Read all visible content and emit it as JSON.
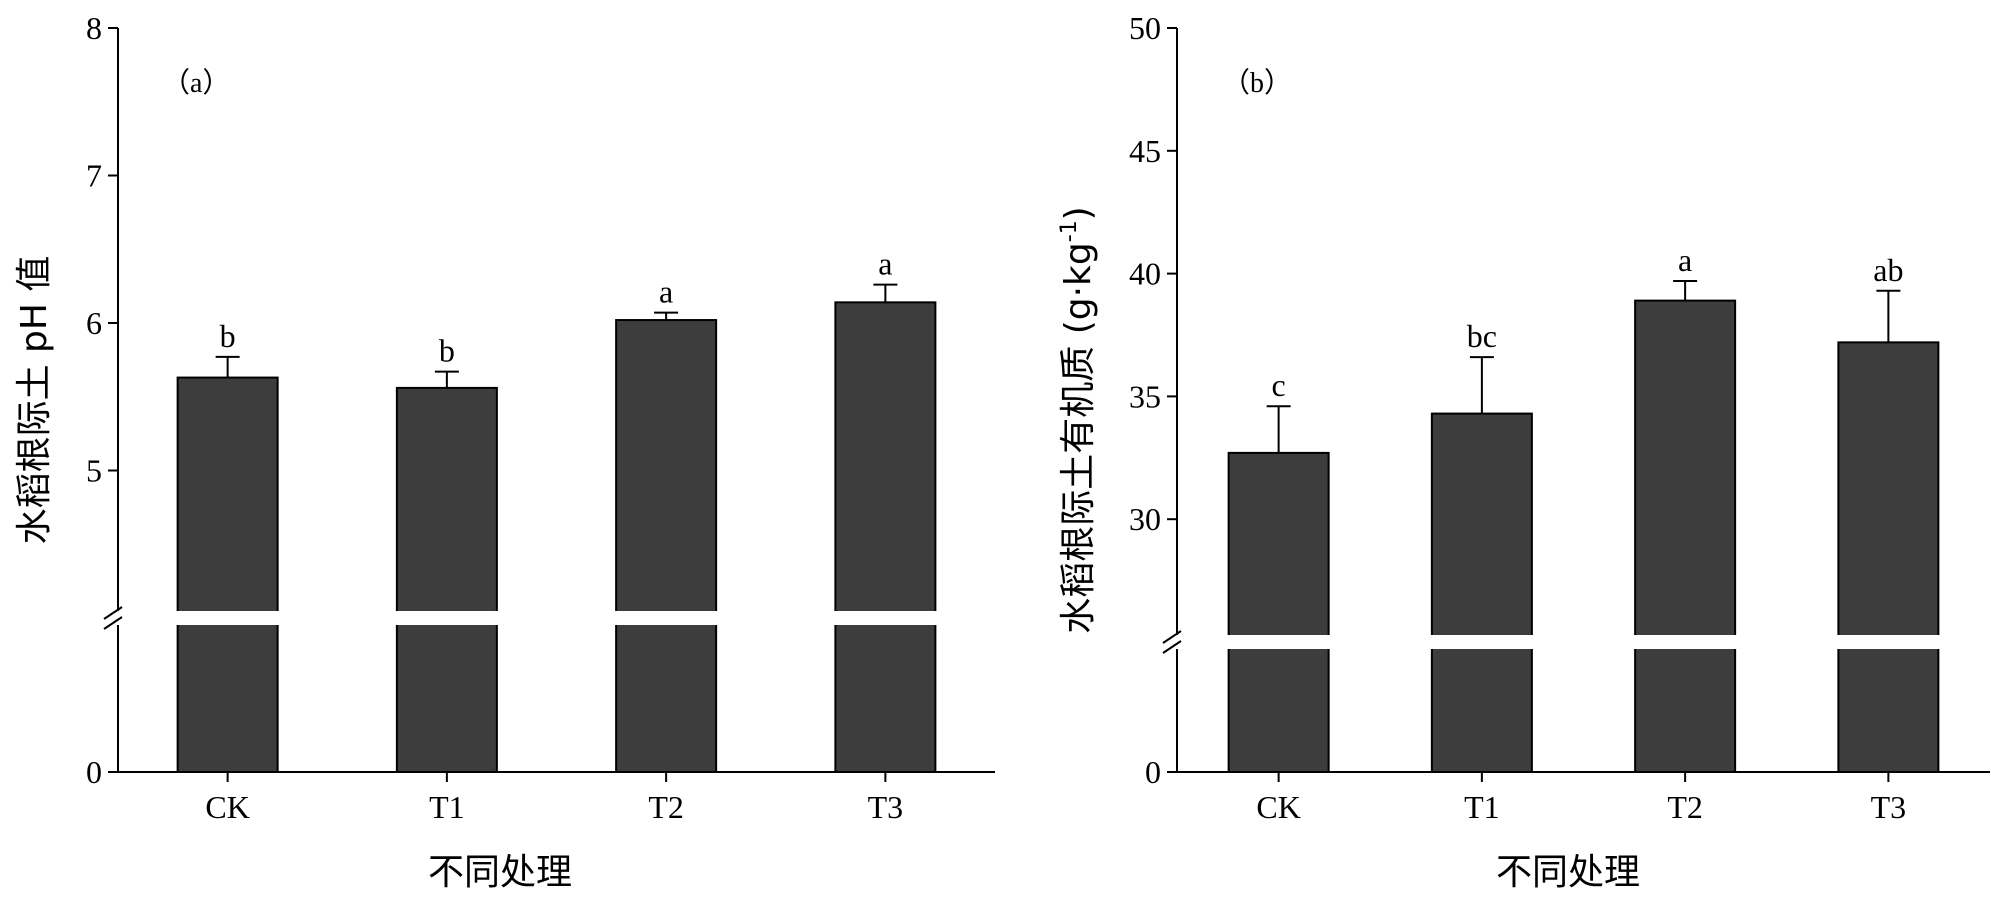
{
  "chart_data": [
    {
      "type": "bar",
      "panel_label": "（a）",
      "xlabel": "不同处理",
      "ylabel": "水稻根际土 pH 值",
      "categories": [
        "CK",
        "T1",
        "T2",
        "T3"
      ],
      "values": [
        5.63,
        5.56,
        6.02,
        6.14
      ],
      "errors": [
        0.14,
        0.11,
        0.05,
        0.12
      ],
      "significance": [
        "b",
        "b",
        "a",
        "a"
      ],
      "ylim": [
        0,
        8
      ],
      "axis_break": [
        0,
        4.0
      ],
      "yticks": [
        0,
        5,
        6,
        7,
        8
      ],
      "bar_color": "#3d3d3d"
    },
    {
      "type": "bar",
      "panel_label": "（b）",
      "xlabel": "不同处理",
      "ylabel": "水稻根际土有机质 (g·kg",
      "ylabel_sup": "-1",
      "ylabel_close": ")",
      "categories": [
        "CK",
        "T1",
        "T2",
        "T3"
      ],
      "values": [
        32.7,
        34.3,
        38.9,
        37.2
      ],
      "errors": [
        1.9,
        2.3,
        0.8,
        2.1
      ],
      "significance": [
        "c",
        "bc",
        "a",
        "ab"
      ],
      "ylim": [
        0,
        50
      ],
      "axis_break": [
        0,
        25
      ],
      "yticks": [
        0,
        30,
        35,
        40,
        45,
        50
      ],
      "bar_color": "#3d3d3d"
    }
  ]
}
